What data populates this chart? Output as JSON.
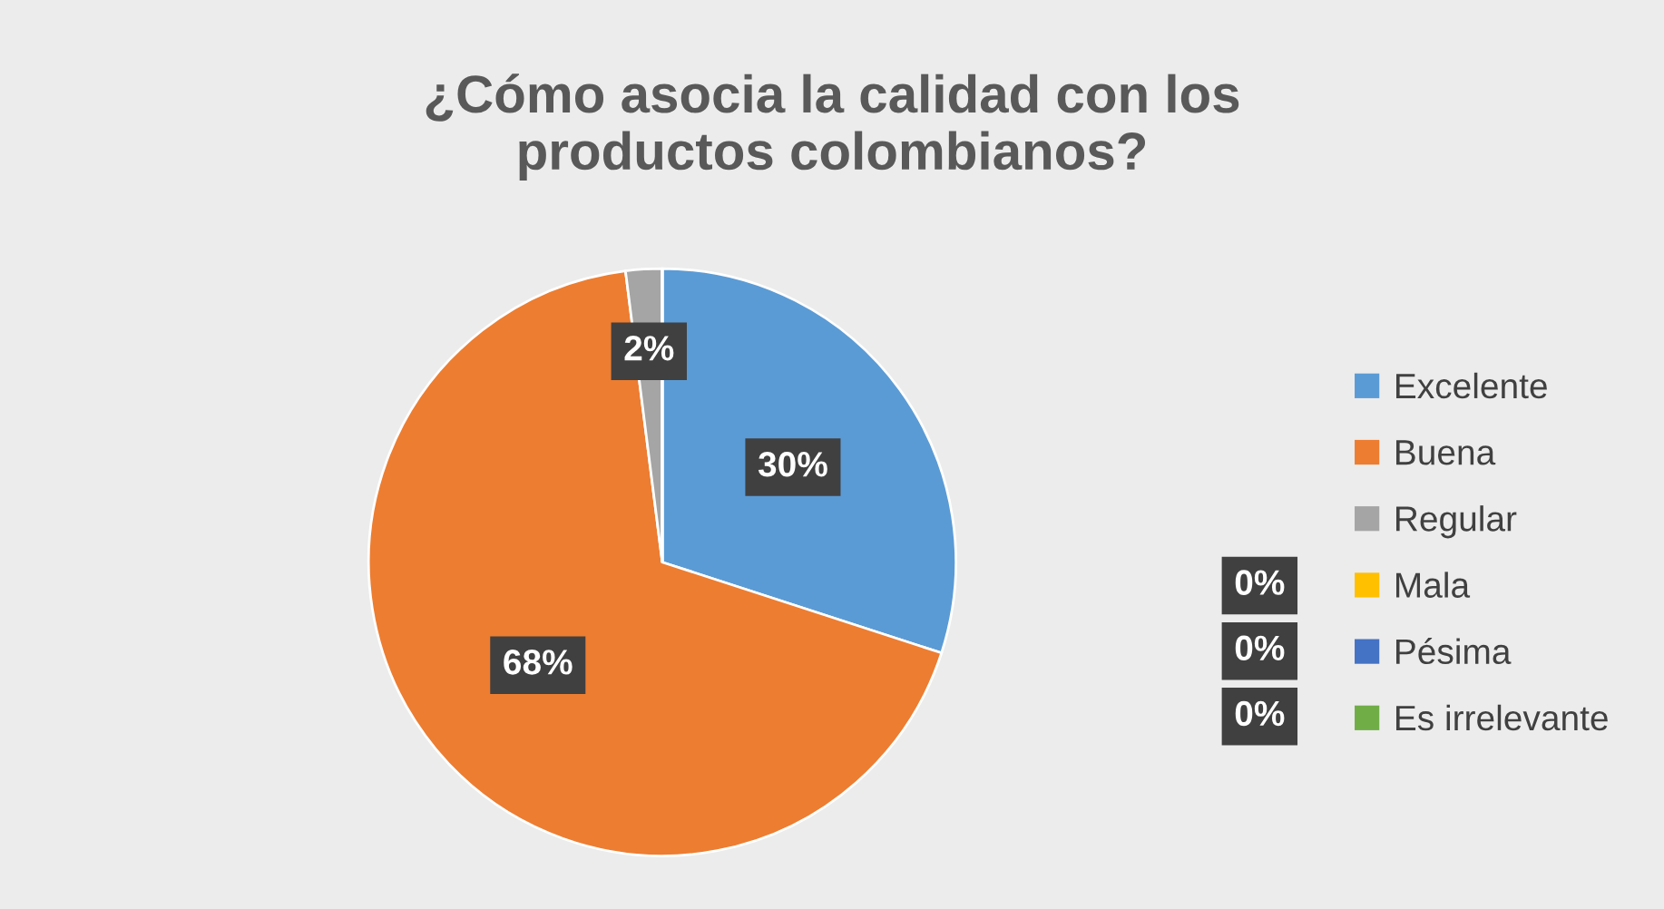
{
  "chart_data": {
    "type": "pie",
    "title": "¿Cómo asocia la calidad con los\nproductos colombianos?",
    "categories": [
      "Excelente",
      "Buena",
      "Regular",
      "Mala",
      "Pésima",
      "Es irrelevante"
    ],
    "values": [
      30,
      68,
      2,
      0,
      0,
      0
    ],
    "colors": [
      "#5b9bd5",
      "#ed7d31",
      "#a5a5a5",
      "#ffc000",
      "#4472c4",
      "#70ad47"
    ],
    "value_labels": [
      "30%",
      "68%",
      "2%",
      "0%",
      "0%",
      "0%"
    ],
    "legend": "right"
  }
}
